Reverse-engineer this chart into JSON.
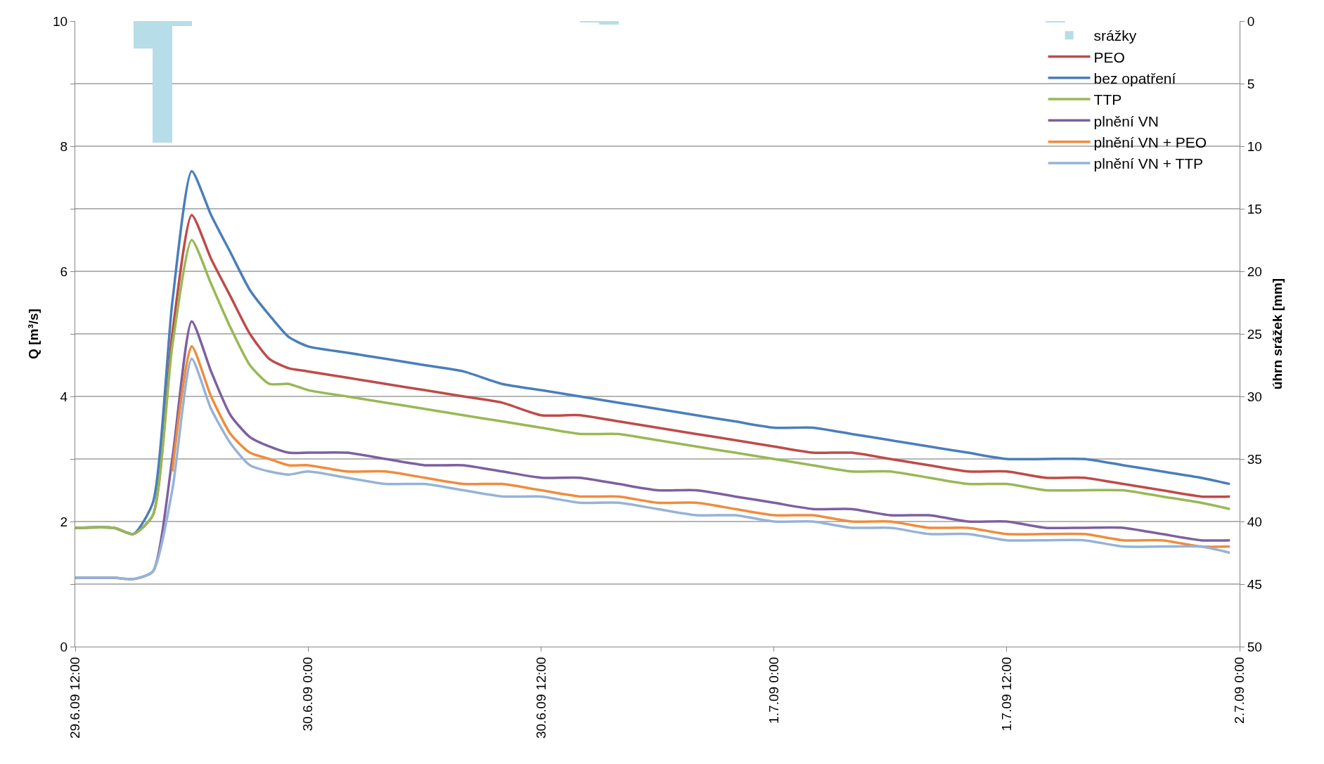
{
  "chart_data": {
    "type": "line",
    "ylabel": "Q [m³/s]",
    "y2label": "úhrn srážek [mm]",
    "x": [
      "--06-29T12:00",
      "--06-29T14:00",
      "--06-29T15:00",
      "--06-29T16:00",
      "--06-29T17:00",
      "--06-29T18:00",
      "--06-29T19:00",
      "--06-29T20:00",
      "--06-29T21:00",
      "--06-29T22:00",
      "--06-29T23:00",
      "--06-30T00:00",
      "--06-30T02:00",
      "--06-30T04:00",
      "--06-30T06:00",
      "--06-30T08:00",
      "--06-30T10:00",
      "--06-30T12:00",
      "--06-30T14:00",
      "--06-30T16:00",
      "--06-30T18:00",
      "--06-30T20:00",
      "--06-30T22:00",
      "--07-01T00:00",
      "--07-01T02:00",
      "--07-01T04:00",
      "--07-01T06:00",
      "--07-01T08:00",
      "--07-01T10:00",
      "--07-01T12:00",
      "--07-01T14:00",
      "--07-01T16:00",
      "--07-01T18:00",
      "--07-01T20:00",
      "--07-01T22:00",
      "--07-01T23:30"
    ],
    "series": [
      {
        "name": "srážky",
        "type": "bar",
        "axis": "y2",
        "color": "#b7dde8",
        "x": [
          "--06-29T15:30",
          "--06-29T16:30",
          "--06-29T17:30",
          "--06-30T14:30",
          "--06-30T15:30",
          "--07-01T14:30"
        ],
        "values": [
          2.2,
          9.7,
          0.4,
          0.1,
          0.3,
          0.1
        ]
      },
      {
        "name": "PEO",
        "color": "#be4b48",
        "values": [
          1.9,
          1.9,
          1.8,
          2.1,
          5.0,
          6.9,
          6.2,
          5.6,
          5.0,
          4.6,
          4.45,
          4.4,
          4.3,
          4.2,
          4.1,
          4.0,
          3.9,
          3.7,
          3.7,
          3.6,
          3.5,
          3.4,
          3.3,
          3.2,
          3.1,
          3.1,
          3.0,
          2.9,
          2.8,
          2.8,
          2.7,
          2.7,
          2.6,
          2.5,
          2.4,
          2.4
        ]
      },
      {
        "name": "bez opatření",
        "color": "#4a7ebb",
        "values": [
          1.9,
          1.9,
          1.8,
          2.3,
          5.5,
          7.6,
          6.9,
          6.3,
          5.7,
          5.3,
          4.95,
          4.8,
          4.7,
          4.6,
          4.5,
          4.4,
          4.2,
          4.1,
          4.0,
          3.9,
          3.8,
          3.7,
          3.6,
          3.5,
          3.5,
          3.4,
          3.3,
          3.2,
          3.1,
          3.0,
          3.0,
          3.0,
          2.9,
          2.8,
          2.7,
          2.6
        ]
      },
      {
        "name": "TTP",
        "color": "#98b954",
        "values": [
          1.9,
          1.9,
          1.8,
          2.1,
          4.8,
          6.5,
          5.8,
          5.1,
          4.5,
          4.2,
          4.2,
          4.1,
          4.0,
          3.9,
          3.8,
          3.7,
          3.6,
          3.5,
          3.4,
          3.4,
          3.3,
          3.2,
          3.1,
          3.0,
          2.9,
          2.8,
          2.8,
          2.7,
          2.6,
          2.6,
          2.5,
          2.5,
          2.5,
          2.4,
          2.3,
          2.2
        ]
      },
      {
        "name": "plnění VN",
        "color": "#7d60a0",
        "values": [
          1.1,
          1.1,
          1.08,
          1.2,
          3.0,
          5.2,
          4.4,
          3.7,
          3.35,
          3.2,
          3.1,
          3.1,
          3.1,
          3.0,
          2.9,
          2.9,
          2.8,
          2.7,
          2.7,
          2.6,
          2.5,
          2.5,
          2.4,
          2.3,
          2.2,
          2.2,
          2.1,
          2.1,
          2.0,
          2.0,
          1.9,
          1.9,
          1.9,
          1.8,
          1.7,
          1.7
        ]
      },
      {
        "name": "plnění VN + PEO",
        "color": "#f08c3c",
        "values": [
          null,
          null,
          null,
          null,
          2.8,
          4.8,
          4.0,
          3.4,
          3.1,
          3.0,
          2.9,
          2.9,
          2.8,
          2.8,
          2.7,
          2.6,
          2.6,
          2.5,
          2.4,
          2.4,
          2.3,
          2.3,
          2.2,
          2.1,
          2.1,
          2.0,
          2.0,
          1.9,
          1.9,
          1.8,
          1.8,
          1.8,
          1.7,
          1.7,
          1.6,
          1.6
        ]
      },
      {
        "name": "plnění VN + TTP",
        "color": "#95b3d7",
        "values": [
          1.1,
          1.1,
          1.08,
          1.2,
          2.5,
          4.6,
          3.8,
          3.25,
          2.9,
          2.8,
          2.75,
          2.8,
          2.7,
          2.6,
          2.6,
          2.5,
          2.4,
          2.4,
          2.3,
          2.3,
          2.2,
          2.1,
          2.1,
          2.0,
          2.0,
          1.9,
          1.9,
          1.8,
          1.8,
          1.7,
          1.7,
          1.7,
          1.6,
          1.6,
          1.6,
          1.5
        ]
      }
    ],
    "xlim": [
      "--06-29T12:00",
      "--07-02T00:00"
    ],
    "xticks": [
      {
        "value": "--06-29T12:00",
        "label": "29.6.09 12:00"
      },
      {
        "value": "--06-30T00:00",
        "label": "30.6.09 0:00"
      },
      {
        "value": "--06-30T12:00",
        "label": "30.6.09 12:00"
      },
      {
        "value": "--07-01T00:00",
        "label": "1.7.09 0:00"
      },
      {
        "value": "--07-01T12:00",
        "label": "1.7.09 12:00"
      },
      {
        "value": "--07-02T00:00",
        "label": "2.7.09 0:00"
      }
    ],
    "ylim": [
      0,
      10
    ],
    "yticks": [
      0,
      {
        "value": 1,
        "label": null
      },
      2,
      {
        "value": 3,
        "label": null
      },
      4,
      {
        "value": 5,
        "label": null
      },
      6,
      {
        "value": 7,
        "label": null
      },
      8,
      {
        "value": 9,
        "label": null
      },
      10
    ],
    "y2lim": [
      50,
      0
    ],
    "y2ticks": [
      0,
      5,
      10,
      15,
      20,
      25,
      30,
      35,
      40,
      45,
      50
    ],
    "grid": "y",
    "legend": "top right"
  }
}
